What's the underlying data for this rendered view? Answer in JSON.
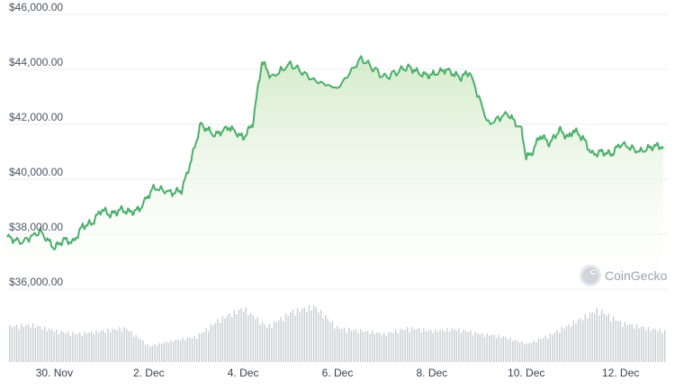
{
  "watermark": {
    "label": "CoinGecko",
    "icon": "gecko-logo-icon"
  },
  "colors": {
    "line": "#4caf6a",
    "area_top": "#cfe9c4",
    "area_bottom": "#ffffff",
    "volume": "#c9ccd1",
    "grid": "#eceef1"
  },
  "chart_data": [
    {
      "type": "area",
      "title": "",
      "xlabel": "",
      "ylabel": "",
      "x_ticks": [
        "30. Nov",
        "2. Dec",
        "4. Dec",
        "6. Dec",
        "8. Dec",
        "10. Dec",
        "12. Dec"
      ],
      "y_ticks": [
        "$36,000.00",
        "$38,000.00",
        "$40,000.00",
        "$42,000.00",
        "$44,000.00",
        "$46,000.00"
      ],
      "xlim": [
        "29. Nov",
        "13. Dec"
      ],
      "ylim": [
        36000,
        46000
      ],
      "grid": true,
      "series": [
        {
          "x": [
            0.0,
            0.3,
            0.7,
            1.0,
            1.2,
            1.4,
            1.6,
            1.8,
            2.0,
            2.2,
            2.3,
            2.4,
            2.6,
            2.8,
            3.1,
            3.5,
            3.7,
            3.9,
            4.1,
            4.4,
            4.7,
            5.0,
            5.2,
            5.4,
            5.6,
            6.0,
            6.5,
            7.0,
            7.5,
            8.0,
            8.5,
            8.8,
            9.0,
            9.3,
            9.6,
            9.8,
            10.2,
            10.6,
            10.9,
            11.0,
            11.1,
            11.3,
            11.5,
            11.7,
            11.9,
            12.0,
            12.2,
            12.4,
            12.6,
            12.8,
            13.0,
            13.4,
            13.7,
            13.9
          ],
          "values": [
            37900,
            37700,
            38100,
            37500,
            37800,
            37700,
            38300,
            38400,
            38900,
            38700,
            38800,
            38900,
            38800,
            38900,
            39700,
            39500,
            39600,
            40700,
            42000,
            41600,
            41900,
            41500,
            42000,
            44300,
            43700,
            44200,
            43600,
            43300,
            44400,
            43700,
            44100,
            43800,
            43800,
            44000,
            43700,
            43900,
            42000,
            42400,
            41800,
            40800,
            40900,
            41600,
            41300,
            41800,
            41500,
            41800,
            41500,
            40900,
            41000,
            40900,
            41300,
            41000,
            41200,
            41200
          ]
        },
        {
          "name": "Volume",
          "type": "bar",
          "x": [
            0,
            0.5,
            1,
            1.5,
            2,
            2.5,
            3,
            3.5,
            4,
            4.5,
            5,
            5.5,
            6,
            6.5,
            7,
            7.5,
            8,
            8.5,
            9,
            9.5,
            10,
            10.5,
            11,
            11.5,
            12,
            12.5,
            13,
            13.5,
            13.9
          ],
          "values": [
            0.62,
            0.66,
            0.55,
            0.5,
            0.55,
            0.6,
            0.28,
            0.38,
            0.45,
            0.76,
            0.95,
            0.62,
            0.88,
            0.98,
            0.6,
            0.55,
            0.5,
            0.6,
            0.55,
            0.58,
            0.5,
            0.45,
            0.32,
            0.48,
            0.7,
            0.92,
            0.7,
            0.6,
            0.55
          ]
        }
      ]
    }
  ]
}
